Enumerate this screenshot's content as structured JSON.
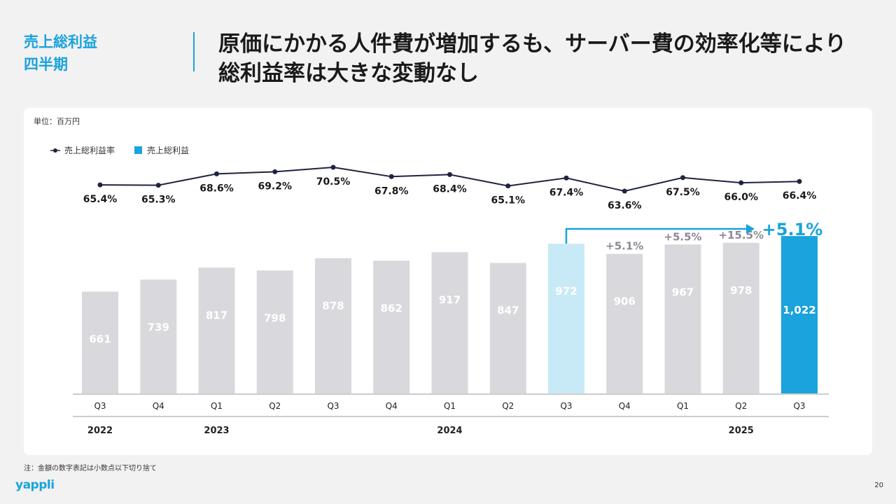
{
  "section_title": {
    "line1": "売上総利益",
    "line2": "四半期"
  },
  "headline": {
    "line1": "原価にかかる人件費が増加するも、サーバー費の効率化等により",
    "line2": "総利益率は大きな変動なし"
  },
  "chart_data": {
    "type": "bar",
    "unit_label": "単位：百万円",
    "legend": {
      "line_label": "売上総利益率",
      "bar_label": "売上総利益"
    },
    "categories": [
      "Q3",
      "Q4",
      "Q1",
      "Q2",
      "Q3",
      "Q4",
      "Q1",
      "Q2",
      "Q3",
      "Q4",
      "Q1",
      "Q2",
      "Q3"
    ],
    "years": [
      {
        "label": "2022",
        "index": 0
      },
      {
        "label": "2023",
        "index": 2
      },
      {
        "label": "2024",
        "index": 6
      },
      {
        "label": "2025",
        "index": 11
      }
    ],
    "series": [
      {
        "name": "売上総利益",
        "values": [
          661,
          739,
          817,
          798,
          878,
          862,
          917,
          847,
          972,
          906,
          967,
          978,
          1022
        ],
        "labels": [
          "661",
          "739",
          "817",
          "798",
          "878",
          "862",
          "917",
          "847",
          "972",
          "906",
          "967",
          "978",
          "1,022"
        ]
      },
      {
        "name": "売上総利益率",
        "values": [
          65.4,
          65.3,
          68.6,
          69.2,
          70.5,
          67.8,
          68.4,
          65.1,
          67.4,
          63.6,
          67.5,
          66.0,
          66.4
        ],
        "labels": [
          "65.4%",
          "65.3%",
          "68.6%",
          "69.2%",
          "70.5%",
          "67.8%",
          "68.4%",
          "65.1%",
          "67.4%",
          "63.6%",
          "67.5%",
          "66.0%",
          "66.4%"
        ]
      }
    ],
    "growth_labels": [
      {
        "index": 9,
        "text": "+5.1%"
      },
      {
        "index": 10,
        "text": "+5.5%"
      },
      {
        "index": 11,
        "text": "+15.5%"
      }
    ],
    "yoy_highlight": {
      "from_index": 8,
      "to_index": 12,
      "text": "+5.1%"
    },
    "ylim": [
      0,
      1100
    ],
    "rate_ylim": [
      60,
      75
    ],
    "colors": {
      "bar": "#d9d9dd",
      "bar_prev": "#c8eaf7",
      "bar_current": "#1aa3dc",
      "line": "#1f2340",
      "accent": "#1aa3dc",
      "growth": "#8a8a96"
    }
  },
  "footnote": "注：金額の数字表記は小数点以下切り捨て",
  "logo": "yappli",
  "page_number": "20"
}
